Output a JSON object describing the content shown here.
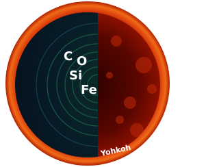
{
  "diagram": {
    "elements": [
      "C",
      "O",
      "Si",
      "Fe"
    ],
    "credit": "Yohkoh"
  }
}
